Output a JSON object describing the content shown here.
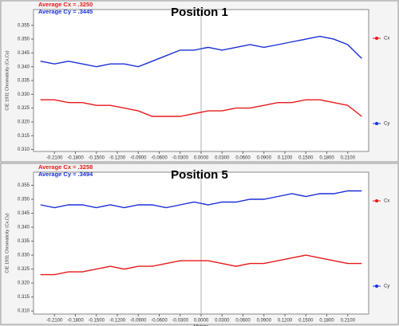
{
  "chart_data": [
    {
      "type": "line",
      "title": "Position 1",
      "annotations": [
        "Average Cx = .3250",
        "Average Cy = .3445"
      ],
      "ylabel": "CIE 1931 Chromaticity (Cx,Cy)",
      "x": [
        -0.23,
        -0.21,
        -0.19,
        -0.17,
        -0.15,
        -0.13,
        -0.11,
        -0.09,
        -0.07,
        -0.05,
        -0.03,
        -0.01,
        0.01,
        0.03,
        0.05,
        0.07,
        0.09,
        0.11,
        0.13,
        0.15,
        0.17,
        0.19,
        0.21,
        0.23
      ],
      "series": [
        {
          "name": "Cx",
          "color": "#e8191a",
          "values": [
            0.328,
            0.328,
            0.327,
            0.327,
            0.326,
            0.326,
            0.325,
            0.324,
            0.322,
            0.322,
            0.322,
            0.323,
            0.324,
            0.324,
            0.325,
            0.325,
            0.326,
            0.327,
            0.327,
            0.328,
            0.328,
            0.327,
            0.326,
            0.322
          ]
        },
        {
          "name": "Cy",
          "color": "#1a2fd6",
          "values": [
            0.342,
            0.341,
            0.342,
            0.341,
            0.34,
            0.341,
            0.341,
            0.34,
            0.342,
            0.344,
            0.346,
            0.346,
            0.347,
            0.346,
            0.347,
            0.348,
            0.347,
            0.348,
            0.349,
            0.35,
            0.351,
            0.35,
            0.348,
            0.343
          ]
        }
      ],
      "xlim": [
        -0.24,
        0.24
      ],
      "ylim": [
        0.3093,
        0.3607
      ],
      "xticks": [
        {
          "value": -0.21,
          "label": "-0.2100"
        },
        {
          "value": -0.18,
          "label": "-0.1800"
        },
        {
          "value": -0.15,
          "label": "-0.1500"
        },
        {
          "value": -0.12,
          "label": "-0.1200"
        },
        {
          "value": -0.09,
          "label": "-0.0900"
        },
        {
          "value": -0.06,
          "label": "-0.0600"
        },
        {
          "value": -0.03,
          "label": "-0.0300"
        },
        {
          "value": 0,
          "label": "0.0000"
        },
        {
          "value": 0.03,
          "label": "0.0300"
        },
        {
          "value": 0.06,
          "label": "0.0600"
        },
        {
          "value": 0.09,
          "label": "0.0900"
        },
        {
          "value": 0.12,
          "label": "0.1200"
        },
        {
          "value": 0.15,
          "label": "0.1500"
        },
        {
          "value": 0.18,
          "label": "0.1800"
        },
        {
          "value": 0.21,
          "label": "0.2100"
        }
      ],
      "yticks": [
        {
          "value": 0.31,
          "label": "0.310"
        },
        0.315,
        {
          "value": 0.32,
          "label": "0.320"
        },
        0.325,
        {
          "value": 0.33,
          "label": "0.330"
        },
        0.335,
        {
          "value": 0.34,
          "label": "0.340"
        },
        0.345,
        {
          "value": 0.35,
          "label": "0.350"
        },
        0.355
      ]
    },
    {
      "type": "line",
      "title": "Position 5",
      "annotations": [
        "Average Cx = .3258",
        "Average Cy = .3494"
      ],
      "ylabel": "CIE 1931 Chromaticity (Cx,Cy)",
      "xlabel": "Meters",
      "x": [
        -0.23,
        -0.21,
        -0.19,
        -0.17,
        -0.15,
        -0.13,
        -0.11,
        -0.09,
        -0.07,
        -0.05,
        -0.03,
        -0.01,
        0.01,
        0.03,
        0.05,
        0.07,
        0.09,
        0.11,
        0.13,
        0.15,
        0.17,
        0.19,
        0.21,
        0.23
      ],
      "series": [
        {
          "name": "Cx",
          "color": "#e8191a",
          "values": [
            0.323,
            0.323,
            0.324,
            0.324,
            0.325,
            0.326,
            0.325,
            0.326,
            0.326,
            0.327,
            0.328,
            0.328,
            0.328,
            0.327,
            0.326,
            0.327,
            0.327,
            0.328,
            0.329,
            0.33,
            0.329,
            0.328,
            0.327,
            0.327
          ]
        },
        {
          "name": "Cy",
          "color": "#1a2fd6",
          "values": [
            0.348,
            0.347,
            0.348,
            0.348,
            0.347,
            0.348,
            0.347,
            0.348,
            0.348,
            0.347,
            0.348,
            0.349,
            0.348,
            0.349,
            0.349,
            0.35,
            0.35,
            0.351,
            0.352,
            0.351,
            0.352,
            0.352,
            0.353,
            0.353
          ]
        }
      ],
      "xlim": [
        -0.24,
        0.24
      ],
      "ylim": [
        0.3089,
        0.3597
      ],
      "xticks": [
        {
          "value": -0.21,
          "label": "-0.2100"
        },
        {
          "value": -0.18,
          "label": "-0.1800"
        },
        {
          "value": -0.15,
          "label": "-0.1500"
        },
        {
          "value": -0.12,
          "label": "-0.1200"
        },
        {
          "value": -0.09,
          "label": "-0.0900"
        },
        {
          "value": -0.06,
          "label": "-0.0600"
        },
        {
          "value": -0.03,
          "label": "-0.0300"
        },
        {
          "value": 0,
          "label": "0.0000"
        },
        {
          "value": 0.03,
          "label": "0.0300"
        },
        {
          "value": 0.06,
          "label": "0.0600"
        },
        {
          "value": 0.09,
          "label": "0.0900"
        },
        {
          "value": 0.12,
          "label": "0.1200"
        },
        {
          "value": 0.15,
          "label": "0.1500"
        },
        {
          "value": 0.18,
          "label": "0.1800"
        },
        {
          "value": 0.21,
          "label": "0.2100"
        }
      ],
      "yticks": [
        {
          "value": 0.31,
          "label": "0.310"
        },
        0.315,
        {
          "value": 0.32,
          "label": "0.320"
        },
        0.325,
        {
          "value": 0.33,
          "label": "0.330"
        },
        0.335,
        {
          "value": 0.34,
          "label": "0.340"
        },
        0.345,
        {
          "value": 0.35,
          "label": "0.350"
        },
        0.355
      ]
    }
  ]
}
